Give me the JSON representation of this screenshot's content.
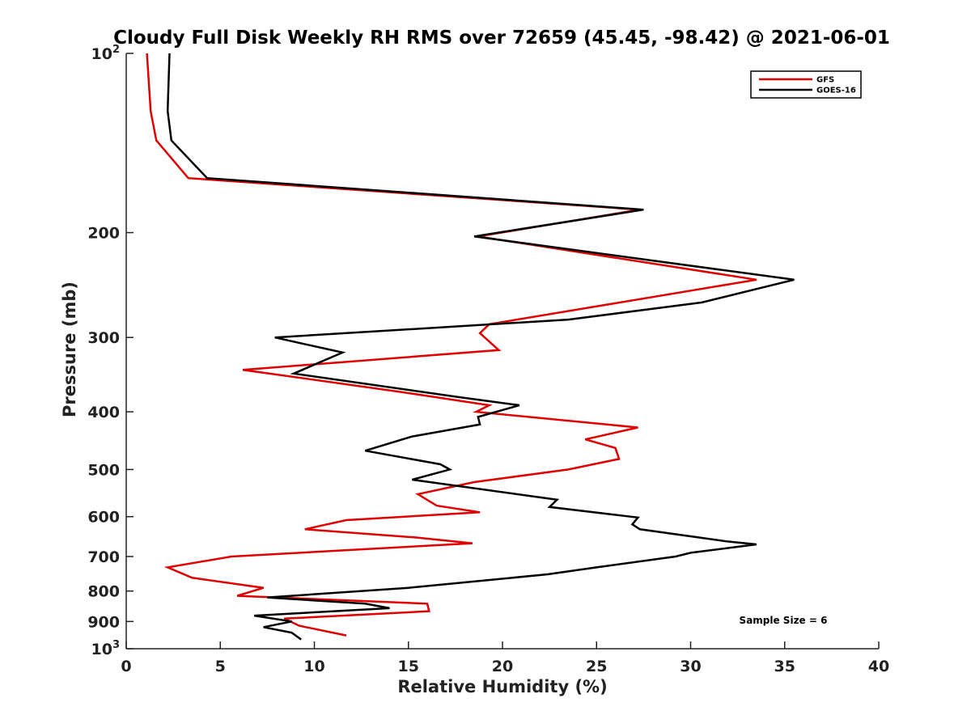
{
  "chart_data": {
    "type": "line",
    "title": "Cloudy Full Disk Weekly RH RMS over 72659 (45.45, -98.42) @ 2021-06-01",
    "xlabel": "Relative Humidity (%)",
    "ylabel": "Pressure (mb)",
    "xlim": [
      0,
      40
    ],
    "ylim": [
      100,
      1000
    ],
    "y_scale": "log",
    "y_reversed": true,
    "xticks": [
      0,
      5,
      10,
      15,
      20,
      25,
      30,
      35,
      40
    ],
    "yticks": [
      {
        "value": 100,
        "base": "10",
        "exp": "2"
      },
      {
        "value": 200,
        "label": "200"
      },
      {
        "value": 300,
        "label": "300"
      },
      {
        "value": 400,
        "label": "400"
      },
      {
        "value": 500,
        "label": "500"
      },
      {
        "value": 600,
        "label": "600"
      },
      {
        "value": 700,
        "label": "700"
      },
      {
        "value": 800,
        "label": "800"
      },
      {
        "value": 900,
        "label": "900"
      },
      {
        "value": 1000,
        "base": "10",
        "exp": "3"
      }
    ],
    "grid": false,
    "legend_position": "top-right",
    "annotation": "Sample Size = 6",
    "series": [
      {
        "name": "GFS",
        "color": "#e00000",
        "points": [
          [
            1.1,
            100
          ],
          [
            1.3,
            125
          ],
          [
            1.6,
            140
          ],
          [
            3.3,
            162
          ],
          [
            27.3,
            183
          ],
          [
            18.7,
            203
          ],
          [
            33.5,
            240
          ],
          [
            19.3,
            285
          ],
          [
            18.8,
            295
          ],
          [
            19.8,
            315
          ],
          [
            6.2,
            340
          ],
          [
            14.5,
            370
          ],
          [
            19.3,
            390
          ],
          [
            18.6,
            400
          ],
          [
            27.2,
            425
          ],
          [
            24.4,
            445
          ],
          [
            26.0,
            460
          ],
          [
            26.2,
            480
          ],
          [
            23.5,
            500
          ],
          [
            18.5,
            525
          ],
          [
            15.5,
            550
          ],
          [
            16.5,
            575
          ],
          [
            18.8,
            590
          ],
          [
            11.7,
            608
          ],
          [
            9.5,
            630
          ],
          [
            15.3,
            650
          ],
          [
            18.4,
            665
          ],
          [
            5.6,
            700
          ],
          [
            2.2,
            730
          ],
          [
            3.5,
            760
          ],
          [
            7.3,
            790
          ],
          [
            5.9,
            815
          ],
          [
            16.0,
            840
          ],
          [
            16.1,
            865
          ],
          [
            8.4,
            890
          ],
          [
            9.2,
            915
          ],
          [
            11.7,
            950
          ]
        ]
      },
      {
        "name": "GOES-16",
        "color": "#000000",
        "points": [
          [
            2.3,
            100
          ],
          [
            2.2,
            125
          ],
          [
            2.4,
            140
          ],
          [
            4.3,
            162
          ],
          [
            27.5,
            183
          ],
          [
            18.5,
            203
          ],
          [
            35.5,
            240
          ],
          [
            30.6,
            262
          ],
          [
            23.5,
            280
          ],
          [
            7.9,
            300
          ],
          [
            11.5,
            318
          ],
          [
            8.9,
            345
          ],
          [
            17.7,
            378
          ],
          [
            20.9,
            390
          ],
          [
            18.7,
            408
          ],
          [
            18.8,
            420
          ],
          [
            15.2,
            440
          ],
          [
            12.7,
            465
          ],
          [
            16.7,
            490
          ],
          [
            17.2,
            500
          ],
          [
            15.2,
            520
          ],
          [
            22.9,
            562
          ],
          [
            22.5,
            578
          ],
          [
            27.2,
            602
          ],
          [
            26.9,
            618
          ],
          [
            27.3,
            630
          ],
          [
            31.9,
            660
          ],
          [
            33.5,
            668
          ],
          [
            30.0,
            690
          ],
          [
            29.2,
            700
          ],
          [
            25.0,
            730
          ],
          [
            22.4,
            750
          ],
          [
            15.0,
            790
          ],
          [
            7.5,
            820
          ],
          [
            12.7,
            840
          ],
          [
            14.0,
            855
          ],
          [
            6.8,
            880
          ],
          [
            8.8,
            900
          ],
          [
            7.3,
            920
          ],
          [
            8.8,
            940
          ],
          [
            9.3,
            965
          ]
        ]
      }
    ]
  }
}
